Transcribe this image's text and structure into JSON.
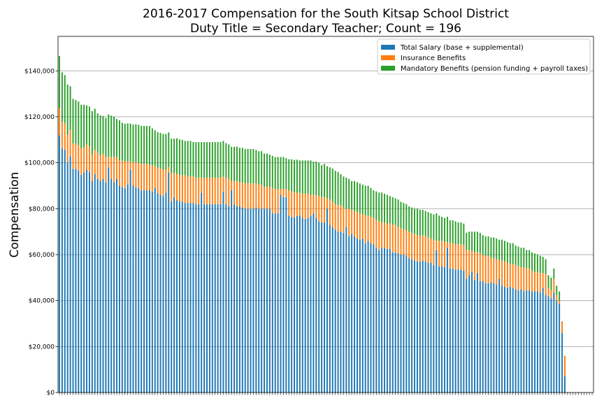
{
  "chart_data": {
    "type": "bar",
    "stacked": true,
    "title": "2016-2017 Compensation for the South Kitsap School District",
    "subtitle": "Duty Title = Secondary Teacher; Count = 196",
    "xlabel": "",
    "ylabel": "Compensation",
    "ylim": [
      0,
      155000
    ],
    "yticks": [
      0,
      20000,
      40000,
      60000,
      80000,
      100000,
      120000,
      140000
    ],
    "ytick_labels": [
      "$0",
      "$20,000",
      "$40,000",
      "$60,000",
      "$80,000",
      "$100,000",
      "$120,000",
      "$140,000"
    ],
    "grid": "horizontal",
    "legend_position": "top-right",
    "count": 196,
    "series": [
      {
        "name": "Total Salary (base + supplemental)",
        "color": "#1f77b4",
        "values": [
          111953,
          106328,
          105641,
          100000,
          102800,
          97313,
          97313,
          96641,
          94734,
          95750,
          96953,
          95969,
          92000,
          95000,
          93000,
          92125,
          92875,
          91500,
          98000,
          93000,
          91500,
          93000,
          90000,
          89391,
          89000,
          90625,
          97031,
          90094,
          89250,
          89000,
          88000,
          88000,
          88000,
          88000,
          87453,
          89125,
          86766,
          86000,
          85500,
          87000,
          95703,
          83000,
          85000,
          83625,
          83141,
          83000,
          82500,
          82500,
          82500,
          82563,
          82000,
          82000,
          87000,
          82000,
          82000,
          82000,
          82000,
          82000,
          82000,
          82000,
          87500,
          82000,
          81000,
          88000,
          81900,
          81000,
          81000,
          80500,
          80000,
          80000,
          80000,
          80000,
          80563,
          80000,
          80000,
          80000,
          80000,
          80000,
          78000,
          78000,
          78000,
          86000,
          85000,
          85000,
          77000,
          76500,
          76250,
          76813,
          77000,
          76000,
          75500,
          76000,
          77000,
          78000,
          76000,
          74500,
          74000,
          74000,
          80000,
          73000,
          72000,
          71000,
          70000,
          70000,
          69500,
          72000,
          68000,
          69000,
          68000,
          67000,
          66500,
          67000,
          65000,
          66000,
          65000,
          64500,
          63000,
          62000,
          63000,
          63000,
          62500,
          62500,
          61000,
          61000,
          60500,
          60000,
          60000,
          59500,
          58500,
          58000,
          57500,
          57000,
          57000,
          57500,
          57000,
          56500,
          56500,
          55500,
          62000,
          55000,
          55000,
          54500,
          63000,
          54000,
          54000,
          53500,
          53500,
          53500,
          53000,
          49500,
          51000,
          52500,
          49000,
          52000,
          48500,
          48500,
          47500,
          47500,
          48000,
          47500,
          47000,
          49500,
          46500,
          46000,
          45500,
          46000,
          45500,
          45000,
          44500,
          45000,
          44000,
          44500,
          44500,
          44000,
          44000,
          44000,
          43500,
          45500,
          42500,
          42000,
          41000,
          43500,
          40000,
          38500,
          26000,
          7000,
          0,
          0,
          0,
          0,
          0,
          0,
          0,
          0,
          0,
          0
        ]
      },
      {
        "name": "Insurance Benefits",
        "color": "#ff7f0e",
        "values": [
          12000,
          11500,
          11500,
          12000,
          11500,
          11000,
          11000,
          11000,
          11500,
          11000,
          11000,
          11000,
          11500,
          10500,
          11500,
          11000,
          11000,
          11000,
          4500,
          9500,
          11000,
          9500,
          11000,
          11500,
          11500,
          10000,
          3500,
          10000,
          11000,
          11000,
          11500,
          11500,
          11500,
          11000,
          11500,
          9500,
          11000,
          11500,
          11500,
          10000,
          2500,
          12500,
          10500,
          11500,
          11500,
          11500,
          12000,
          11500,
          11500,
          11500,
          11500,
          11500,
          6500,
          11500,
          11500,
          11500,
          11500,
          11500,
          11500,
          11500,
          6500,
          11500,
          12000,
          4000,
          10000,
          11000,
          10500,
          11000,
          11000,
          11000,
          11000,
          11000,
          10500,
          10500,
          10500,
          9500,
          9500,
          9500,
          11000,
          10500,
          10500,
          2500,
          3500,
          3500,
          11000,
          11000,
          11000,
          10000,
          10000,
          10500,
          11000,
          10500,
          9000,
          8000,
          10000,
          11000,
          11000,
          11000,
          4500,
          11000,
          11000,
          11000,
          11500,
          11500,
          11000,
          8000,
          12000,
          10500,
          11000,
          11500,
          11500,
          10500,
          12000,
          11000,
          11500,
          11500,
          12000,
          12500,
          11000,
          11000,
          11000,
          11000,
          12000,
          12000,
          11500,
          11500,
          11000,
          11000,
          11500,
          11500,
          11500,
          11500,
          11000,
          11000,
          11000,
          11000,
          10500,
          11000,
          4000,
          11000,
          11000,
          11000,
          2500,
          11000,
          11000,
          11000,
          11000,
          11000,
          11000,
          12500,
          11000,
          9000,
          12000,
          9000,
          12000,
          11500,
          12000,
          12000,
          10500,
          11000,
          11000,
          8000,
          11000,
          11000,
          11000,
          10000,
          10500,
          10500,
          10500,
          9500,
          10500,
          9500,
          9500,
          9000,
          8500,
          8500,
          8500,
          6500,
          9000,
          3500,
          3500,
          6000,
          2500,
          1500,
          5000,
          9000,
          0,
          0,
          0,
          0,
          0,
          0,
          0,
          0,
          0,
          0
        ]
      },
      {
        "name": "Mandatory Benefits (pension funding + payroll taxes)",
        "color": "#2ca02c",
        "values": [
          22500,
          21500,
          21000,
          22000,
          19000,
          19500,
          19000,
          19000,
          19000,
          18500,
          17000,
          17500,
          19000,
          18000,
          17000,
          17500,
          16500,
          17000,
          18500,
          18000,
          17500,
          16500,
          17500,
          16500,
          16500,
          16500,
          16500,
          16500,
          16500,
          16500,
          16500,
          16500,
          16500,
          17000,
          16000,
          15500,
          15500,
          15500,
          15500,
          15500,
          15000,
          15000,
          15000,
          15500,
          15500,
          15500,
          15000,
          15500,
          15500,
          15000,
          15500,
          15500,
          15500,
          15500,
          15500,
          15500,
          15500,
          15500,
          15500,
          15500,
          15500,
          15000,
          15000,
          15000,
          15000,
          15000,
          15000,
          15000,
          15000,
          15000,
          15000,
          15000,
          14500,
          14500,
          14500,
          14500,
          14500,
          14000,
          14000,
          14000,
          14000,
          14000,
          14000,
          13500,
          13500,
          14000,
          14000,
          14500,
          14000,
          14500,
          14500,
          14500,
          15000,
          14500,
          14500,
          14500,
          14000,
          14500,
          14000,
          14000,
          14500,
          14500,
          14500,
          13500,
          13500,
          13500,
          13000,
          12500,
          13000,
          13000,
          13000,
          13000,
          13000,
          13000,
          12500,
          12000,
          12500,
          12500,
          13000,
          12500,
          12500,
          12000,
          12000,
          11500,
          12000,
          11500,
          11500,
          11500,
          11000,
          11000,
          11000,
          11500,
          11500,
          11000,
          11000,
          11000,
          11000,
          11000,
          12000,
          11000,
          10500,
          10500,
          11000,
          10000,
          10000,
          10000,
          9500,
          9500,
          9500,
          7500,
          8000,
          8500,
          9000,
          9000,
          9000,
          8500,
          8500,
          8500,
          9000,
          9000,
          9000,
          9000,
          9000,
          9000,
          9000,
          9000,
          9000,
          8500,
          8500,
          8500,
          8500,
          8000,
          8000,
          8000,
          8000,
          7500,
          7500,
          7000,
          6500,
          5500,
          5500,
          4500,
          4000,
          4000,
          0,
          0,
          0,
          0,
          0,
          0,
          0,
          0,
          0,
          0
        ]
      }
    ],
    "totals_note_removed": true
  }
}
